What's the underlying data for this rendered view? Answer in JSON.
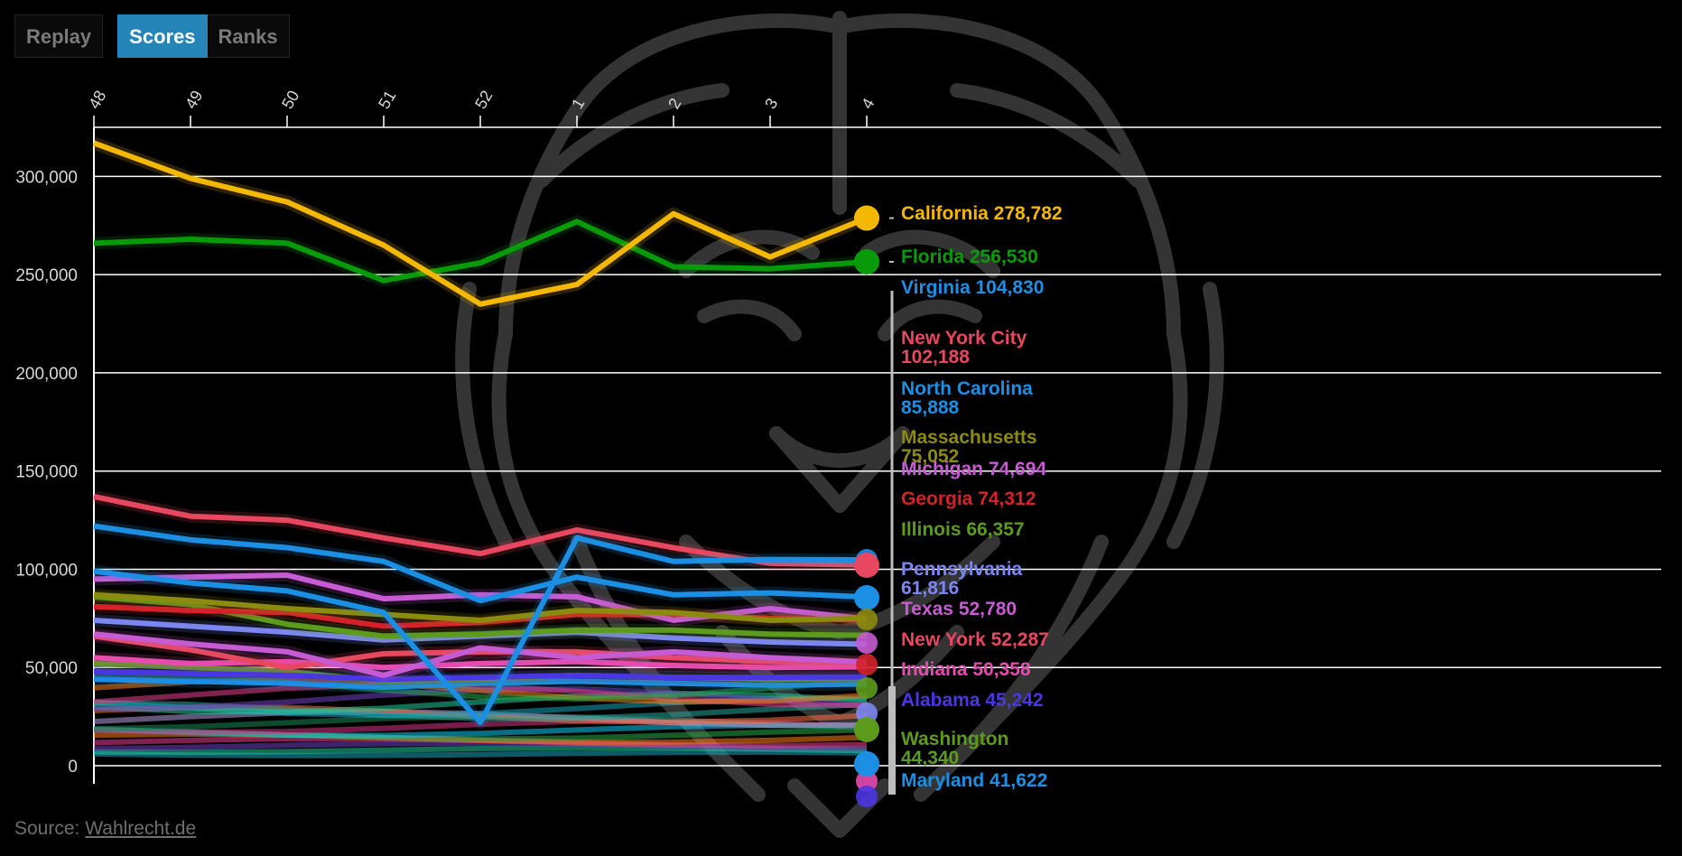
{
  "toolbar": {
    "replay_label": "Replay",
    "scores_label": "Scores",
    "ranks_label": "Ranks",
    "active": "Scores"
  },
  "source": {
    "prefix": "Source: ",
    "link_text": "Wahlrecht.de"
  },
  "colors": {
    "background": "#000000",
    "gridline": "#ffffff",
    "accent": "#2585b8"
  },
  "background_image": "lion-head-icon",
  "chart_data": {
    "type": "line",
    "x": [
      "48",
      "49",
      "50",
      "51",
      "52",
      "1",
      "2",
      "3",
      "4"
    ],
    "ylim": [
      0,
      325000
    ],
    "yticks": [
      0,
      50000,
      100000,
      150000,
      200000,
      250000,
      300000
    ],
    "ytick_labels": [
      "0",
      "50,000",
      "100,000",
      "150,000",
      "200,000",
      "250,000",
      "300,000"
    ],
    "grid": true,
    "series": [
      {
        "name": "California",
        "color": "#f5b800",
        "values": [
          317000,
          299000,
          287000,
          265000,
          235000,
          245000,
          281000,
          259000,
          278782
        ],
        "label": "California 278,782"
      },
      {
        "name": "Florida",
        "color": "#079b09",
        "values": [
          266000,
          268000,
          266000,
          247000,
          256000,
          277000,
          254000,
          253000,
          256530
        ],
        "label": "Florida 256,530"
      },
      {
        "name": "Virginia",
        "color": "#1a8fe3",
        "values": [
          99000,
          93000,
          89000,
          78000,
          22000,
          116000,
          104000,
          105000,
          104830
        ],
        "label": "Virginia 104,830"
      },
      {
        "name": "New York City",
        "color": "#e8485f",
        "values": [
          137000,
          127000,
          125000,
          116000,
          108000,
          120000,
          111000,
          103000,
          102188
        ],
        "label": "New York City 102,188"
      },
      {
        "name": "North Carolina",
        "color": "#1a8fe3",
        "values": [
          122000,
          115000,
          111000,
          104000,
          84000,
          96000,
          87000,
          88000,
          85888
        ],
        "label": "North Carolina 85,888"
      },
      {
        "name": "Massachusetts",
        "color": "#8b8b10",
        "values": [
          87000,
          84000,
          80000,
          77000,
          74000,
          79000,
          78000,
          74000,
          75052
        ],
        "label": "Massachusetts 75,052"
      },
      {
        "name": "Michigan",
        "color": "#c65bd3",
        "values": [
          95000,
          96000,
          97000,
          85000,
          87000,
          86000,
          74000,
          80000,
          74694
        ],
        "label": "Michigan 74,694"
      },
      {
        "name": "Georgia",
        "color": "#d3222a",
        "values": [
          81000,
          79000,
          78000,
          71000,
          73000,
          77000,
          77000,
          75000,
          74312
        ],
        "label": "Georgia 74,312"
      },
      {
        "name": "Illinois",
        "color": "#5d9b1d",
        "values": [
          86000,
          82000,
          72000,
          66000,
          67000,
          69000,
          69000,
          67000,
          66357
        ],
        "label": "Illinois 66,357"
      },
      {
        "name": "Pennsylvania",
        "color": "#7c86f0",
        "values": [
          74000,
          71000,
          68000,
          64000,
          66000,
          68000,
          65000,
          63000,
          61816
        ],
        "label": "Pennsylvania 61,816"
      },
      {
        "name": "Texas",
        "color": "#c65bd3",
        "values": [
          67000,
          62000,
          58000,
          46000,
          60000,
          55000,
          58000,
          55000,
          52780
        ],
        "label": "Texas 52,780"
      },
      {
        "name": "New York",
        "color": "#e8485f",
        "values": [
          66000,
          59000,
          50000,
          57000,
          58000,
          58000,
          55000,
          53000,
          52287
        ],
        "label": "New York 52,287"
      },
      {
        "name": "Indiana",
        "color": "#e64bb0",
        "values": [
          55000,
          52000,
          53000,
          50000,
          52000,
          53000,
          51000,
          50000,
          50358
        ],
        "label": "Indiana 50,358"
      },
      {
        "name": "Alabama",
        "color": "#4b36e3",
        "values": [
          48000,
          47000,
          46000,
          44000,
          45000,
          46000,
          45000,
          45000,
          45242
        ],
        "label": "Alabama 45,242"
      },
      {
        "name": "Washington",
        "color": "#5d9b1d",
        "values": [
          52000,
          50000,
          48000,
          43000,
          44000,
          46000,
          45000,
          44000,
          44340
        ],
        "label": "Washington 44,340"
      },
      {
        "name": "Maryland",
        "color": "#1a8fe3",
        "values": [
          44000,
          43000,
          42000,
          40000,
          42000,
          43000,
          42000,
          41000,
          41622
        ],
        "label": "Maryland 41,622"
      }
    ]
  }
}
